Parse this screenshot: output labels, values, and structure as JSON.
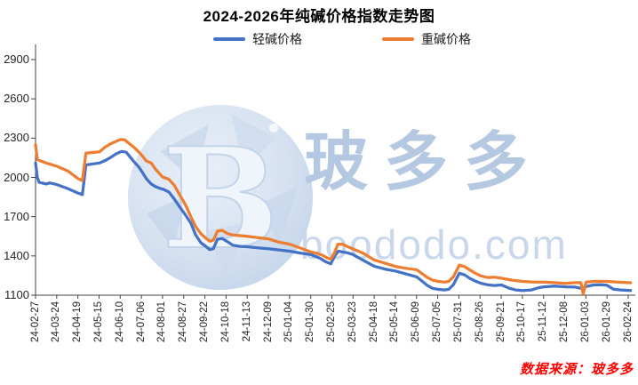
{
  "title": "2024-2026年纯碱价格指数走势图",
  "legend": [
    {
      "label": "轻碱价格",
      "color": "#4472C4"
    },
    {
      "label": "重碱价格",
      "color": "#ED7D31"
    }
  ],
  "source_note": "数据来源：玻多多",
  "watermark": {
    "logo_letter": "B",
    "cn": "玻多多",
    "url": "boododo.com"
  },
  "colors": {
    "light_soda_line": "#4472C4",
    "heavy_soda_line": "#ED7D31",
    "source_text": "#FF0000",
    "watermark_blue": "#B5C8E2",
    "axis": "#404040"
  },
  "chart_data": {
    "type": "line",
    "title": "2024-2026年纯碱价格指数走势图",
    "xlabel": "",
    "ylabel": "",
    "ylim": [
      1100,
      2900
    ],
    "y_ticks": [
      1100,
      1400,
      1700,
      2000,
      2300,
      2600,
      2900
    ],
    "grid": false,
    "legend_position": "top",
    "x_tick_labels": [
      "24-02-27",
      "24-03-24",
      "24-04-19",
      "24-05-15",
      "24-06-10",
      "24-07-06",
      "24-08-01",
      "24-08-27",
      "24-09-22",
      "24-10-18",
      "24-11-13",
      "24-12-09",
      "25-01-04",
      "25-01-30",
      "25-02-25",
      "25-03-23",
      "25-04-18",
      "25-05-14",
      "25-06-09",
      "25-07-05",
      "25-07-31",
      "25-08-26",
      "25-09-21",
      "25-10-17",
      "25-11-12",
      "25-12-08",
      "26-01-03",
      "26-01-29",
      "26-02-24"
    ],
    "series": [
      {
        "name": "轻碱价格",
        "color": "#4472C4",
        "points": [
          [
            0.0,
            2110
          ],
          [
            0.003,
            2000
          ],
          [
            0.006,
            1962
          ],
          [
            0.018,
            1950
          ],
          [
            0.024,
            1958
          ],
          [
            0.036,
            1945
          ],
          [
            0.054,
            1915
          ],
          [
            0.072,
            1880
          ],
          [
            0.079,
            1868
          ],
          [
            0.085,
            2095
          ],
          [
            0.108,
            2110
          ],
          [
            0.117,
            2128
          ],
          [
            0.126,
            2150
          ],
          [
            0.136,
            2180
          ],
          [
            0.145,
            2198
          ],
          [
            0.153,
            2192
          ],
          [
            0.159,
            2158
          ],
          [
            0.166,
            2120
          ],
          [
            0.174,
            2080
          ],
          [
            0.18,
            2040
          ],
          [
            0.187,
            1990
          ],
          [
            0.195,
            1950
          ],
          [
            0.202,
            1930
          ],
          [
            0.21,
            1916
          ],
          [
            0.216,
            1908
          ],
          [
            0.225,
            1888
          ],
          [
            0.234,
            1835
          ],
          [
            0.244,
            1770
          ],
          [
            0.253,
            1712
          ],
          [
            0.262,
            1650
          ],
          [
            0.27,
            1562
          ],
          [
            0.279,
            1500
          ],
          [
            0.286,
            1477
          ],
          [
            0.294,
            1448
          ],
          [
            0.3,
            1455
          ],
          [
            0.307,
            1528
          ],
          [
            0.315,
            1533
          ],
          [
            0.324,
            1508
          ],
          [
            0.333,
            1482
          ],
          [
            0.345,
            1473
          ],
          [
            0.357,
            1470
          ],
          [
            0.375,
            1462
          ],
          [
            0.393,
            1455
          ],
          [
            0.411,
            1446
          ],
          [
            0.429,
            1436
          ],
          [
            0.447,
            1422
          ],
          [
            0.465,
            1410
          ],
          [
            0.48,
            1382
          ],
          [
            0.489,
            1356
          ],
          [
            0.498,
            1340
          ],
          [
            0.505,
            1400
          ],
          [
            0.511,
            1436
          ],
          [
            0.526,
            1424
          ],
          [
            0.535,
            1412
          ],
          [
            0.553,
            1366
          ],
          [
            0.571,
            1322
          ],
          [
            0.589,
            1300
          ],
          [
            0.607,
            1285
          ],
          [
            0.625,
            1262
          ],
          [
            0.643,
            1240
          ],
          [
            0.652,
            1208
          ],
          [
            0.661,
            1175
          ],
          [
            0.67,
            1152
          ],
          [
            0.679,
            1145
          ],
          [
            0.69,
            1140
          ],
          [
            0.697,
            1145
          ],
          [
            0.705,
            1180
          ],
          [
            0.715,
            1268
          ],
          [
            0.724,
            1255
          ],
          [
            0.733,
            1228
          ],
          [
            0.742,
            1208
          ],
          [
            0.751,
            1192
          ],
          [
            0.762,
            1180
          ],
          [
            0.774,
            1174
          ],
          [
            0.786,
            1178
          ],
          [
            0.798,
            1155
          ],
          [
            0.81,
            1140
          ],
          [
            0.822,
            1136
          ],
          [
            0.837,
            1140
          ],
          [
            0.849,
            1158
          ],
          [
            0.858,
            1164
          ],
          [
            0.876,
            1170
          ],
          [
            0.894,
            1164
          ],
          [
            0.911,
            1162
          ],
          [
            0.922,
            1150
          ],
          [
            0.929,
            1166
          ],
          [
            0.941,
            1178
          ],
          [
            0.953,
            1180
          ],
          [
            0.964,
            1176
          ],
          [
            0.975,
            1146
          ],
          [
            0.987,
            1140
          ],
          [
            1.004,
            1135
          ]
        ]
      },
      {
        "name": "重碱价格",
        "color": "#ED7D31",
        "points": [
          [
            0.0,
            2250
          ],
          [
            0.003,
            2135
          ],
          [
            0.018,
            2110
          ],
          [
            0.036,
            2085
          ],
          [
            0.054,
            2050
          ],
          [
            0.072,
            1990
          ],
          [
            0.079,
            1975
          ],
          [
            0.085,
            2185
          ],
          [
            0.108,
            2195
          ],
          [
            0.117,
            2230
          ],
          [
            0.126,
            2255
          ],
          [
            0.136,
            2275
          ],
          [
            0.144,
            2290
          ],
          [
            0.151,
            2285
          ],
          [
            0.159,
            2255
          ],
          [
            0.166,
            2230
          ],
          [
            0.174,
            2195
          ],
          [
            0.18,
            2165
          ],
          [
            0.187,
            2125
          ],
          [
            0.195,
            2110
          ],
          [
            0.202,
            2065
          ],
          [
            0.214,
            2005
          ],
          [
            0.225,
            1985
          ],
          [
            0.234,
            1940
          ],
          [
            0.244,
            1860
          ],
          [
            0.253,
            1790
          ],
          [
            0.262,
            1700
          ],
          [
            0.27,
            1625
          ],
          [
            0.279,
            1570
          ],
          [
            0.286,
            1540
          ],
          [
            0.294,
            1512
          ],
          [
            0.3,
            1520
          ],
          [
            0.307,
            1590
          ],
          [
            0.315,
            1595
          ],
          [
            0.324,
            1570
          ],
          [
            0.333,
            1560
          ],
          [
            0.345,
            1555
          ],
          [
            0.357,
            1550
          ],
          [
            0.375,
            1540
          ],
          [
            0.393,
            1530
          ],
          [
            0.411,
            1505
          ],
          [
            0.429,
            1490
          ],
          [
            0.447,
            1460
          ],
          [
            0.465,
            1430
          ],
          [
            0.475,
            1420
          ],
          [
            0.484,
            1405
          ],
          [
            0.492,
            1385
          ],
          [
            0.498,
            1375
          ],
          [
            0.504,
            1420
          ],
          [
            0.51,
            1490
          ],
          [
            0.519,
            1488
          ],
          [
            0.526,
            1472
          ],
          [
            0.535,
            1455
          ],
          [
            0.553,
            1420
          ],
          [
            0.571,
            1370
          ],
          [
            0.589,
            1345
          ],
          [
            0.607,
            1320
          ],
          [
            0.625,
            1305
          ],
          [
            0.643,
            1295
          ],
          [
            0.652,
            1265
          ],
          [
            0.661,
            1235
          ],
          [
            0.67,
            1215
          ],
          [
            0.679,
            1205
          ],
          [
            0.69,
            1200
          ],
          [
            0.697,
            1205
          ],
          [
            0.705,
            1240
          ],
          [
            0.715,
            1330
          ],
          [
            0.724,
            1318
          ],
          [
            0.733,
            1292
          ],
          [
            0.742,
            1268
          ],
          [
            0.751,
            1248
          ],
          [
            0.762,
            1235
          ],
          [
            0.774,
            1238
          ],
          [
            0.786,
            1230
          ],
          [
            0.804,
            1215
          ],
          [
            0.822,
            1205
          ],
          [
            0.84,
            1200
          ],
          [
            0.858,
            1200
          ],
          [
            0.876,
            1196
          ],
          [
            0.894,
            1190
          ],
          [
            0.911,
            1196
          ],
          [
            0.92,
            1196
          ],
          [
            0.924,
            1110
          ],
          [
            0.929,
            1200
          ],
          [
            0.944,
            1206
          ],
          [
            0.964,
            1205
          ],
          [
            0.982,
            1200
          ],
          [
            1.004,
            1195
          ]
        ]
      }
    ]
  }
}
